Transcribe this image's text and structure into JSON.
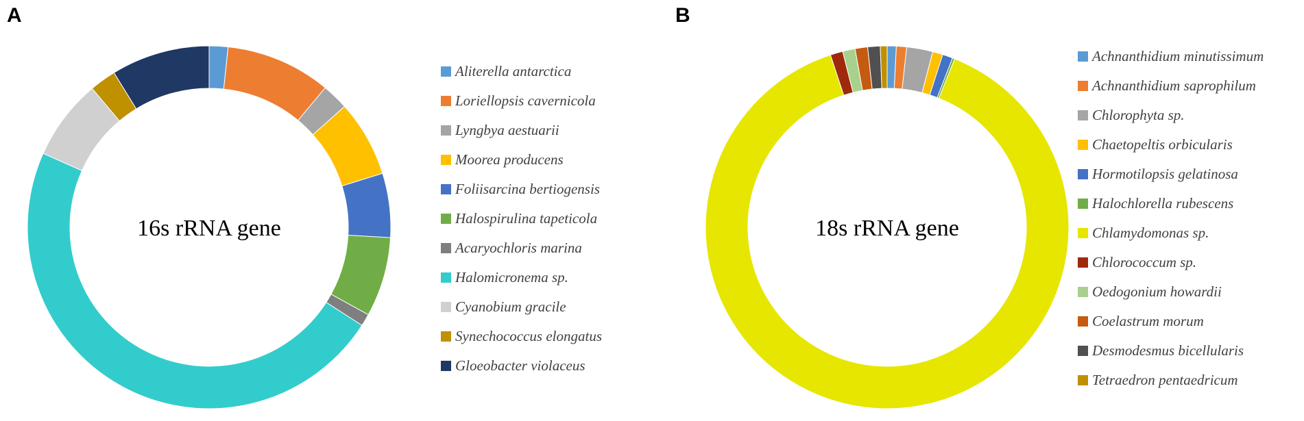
{
  "panels": {
    "a": {
      "letter": "A"
    },
    "b": {
      "letter": "B"
    }
  },
  "chart_data": [
    {
      "type": "pie",
      "variant": "donut",
      "center_label": "16s rRNA gene",
      "legend_position": "right",
      "slices": [
        {
          "label": "Aliterella antarctica",
          "value": 1.7,
          "color": "#5B9BD5"
        },
        {
          "label": "Loriellopsis cavernicola",
          "value": 9.5,
          "color": "#ED7D31"
        },
        {
          "label": "Lyngbya aestuarii",
          "value": 2.4,
          "color": "#A5A5A5"
        },
        {
          "label": "Moorea producens",
          "value": 6.9,
          "color": "#FFC000"
        },
        {
          "label": "Foliisarcina bertiogensis",
          "value": 5.8,
          "color": "#4472C4"
        },
        {
          "label": "Halospirulina tapeticola",
          "value": 7.2,
          "color": "#70AD47"
        },
        {
          "label": "Acaryochloris marina",
          "value": 1.1,
          "color": "#7F7F7F"
        },
        {
          "label": "Halomicronema sp.",
          "value": 48.3,
          "color": "#33CCCC"
        },
        {
          "label": "Cyanobium gracile",
          "value": 7.3,
          "color": "#D0D0D0"
        },
        {
          "label": "Synechococcus elongatus",
          "value": 2.4,
          "color": "#BF9000"
        },
        {
          "label": "Gloeobacter violaceus",
          "value": 8.9,
          "color": "#1F3864"
        }
      ]
    },
    {
      "type": "pie",
      "variant": "donut",
      "center_label": "18s rRNA gene",
      "legend_position": "right",
      "slices": [
        {
          "label": "Achnanthidium minutissimum",
          "value": 0.8,
          "color": "#5B9BD5"
        },
        {
          "label": "Achnanthidium saprophilum",
          "value": 0.9,
          "color": "#ED7D31"
        },
        {
          "label": "Chlorophyta sp.",
          "value": 2.3,
          "color": "#A5A5A5"
        },
        {
          "label": "Chaetopeltis orbicularis",
          "value": 0.9,
          "color": "#FFC000"
        },
        {
          "label": "Hormotilopsis gelatinosa",
          "value": 0.9,
          "color": "#4472C4"
        },
        {
          "label": "Halochlorella rubescens",
          "value": 0.2,
          "color": "#70AD47"
        },
        {
          "label": "Chlamydomonas sp.",
          "value": 88.0,
          "color": "#E6E600"
        },
        {
          "label": "Chlorococcum sp.",
          "value": 1.1,
          "color": "#9E2A0B"
        },
        {
          "label": "Oedogonium howardii",
          "value": 1.1,
          "color": "#A9D18E"
        },
        {
          "label": "Coelastrum morum",
          "value": 1.1,
          "color": "#C55A11"
        },
        {
          "label": "Desmodesmus bicellularis",
          "value": 1.1,
          "color": "#505050"
        },
        {
          "label": "Tetraedron pentaedricum",
          "value": 0.6,
          "color": "#BF9000"
        }
      ]
    }
  ]
}
